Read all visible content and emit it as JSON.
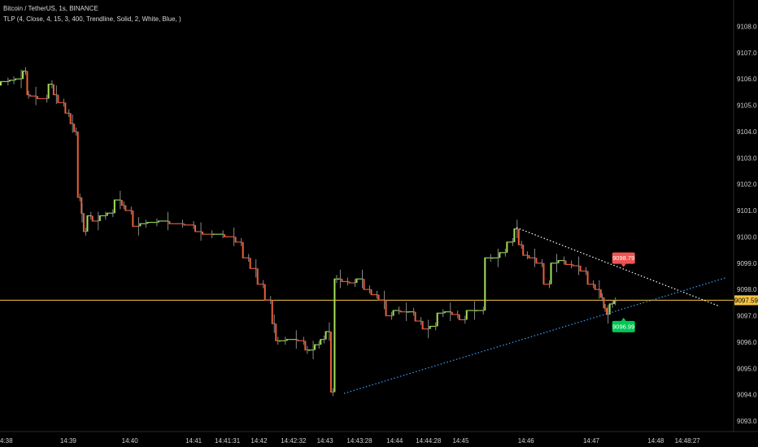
{
  "legend": {
    "symbol": "Bitcoin / TetherUS, 1s, BINANCE",
    "indicator": "TLP (4, Close, 4, 15, 3, 400, Trendline, Solid, 2, White, Blue, )"
  },
  "chart_data": {
    "type": "candlestick",
    "y_axis": {
      "side": "right",
      "ylim": [
        9092.6,
        9109.0
      ],
      "ticks": [
        9093.0,
        9094.0,
        9095.0,
        9096.0,
        9097.0,
        9098.0,
        9099.0,
        9100.0,
        9101.0,
        9102.0,
        9103.0,
        9104.0,
        9105.0,
        9106.0,
        9107.0,
        9108.0
      ]
    },
    "x_axis": {
      "ticks": [
        {
          "label": "4:38",
          "pos": 0.0
        },
        {
          "label": "14:39",
          "pos": 0.093
        },
        {
          "label": "14:40",
          "pos": 0.177
        },
        {
          "label": "14:41",
          "pos": 0.264
        },
        {
          "label": "14:41:31",
          "pos": 0.31
        },
        {
          "label": "14:42",
          "pos": 0.353
        },
        {
          "label": "14:42:32",
          "pos": 0.4
        },
        {
          "label": "14:43",
          "pos": 0.443
        },
        {
          "label": "14:43:28",
          "pos": 0.49
        },
        {
          "label": "14:44",
          "pos": 0.538
        },
        {
          "label": "14:44:28",
          "pos": 0.584
        },
        {
          "label": "14:45",
          "pos": 0.628
        },
        {
          "label": "14:46",
          "pos": 0.717
        },
        {
          "label": "14:47",
          "pos": 0.806
        },
        {
          "label": "14:48",
          "pos": 0.894
        },
        {
          "label": "14:48:27",
          "pos": 0.937
        }
      ]
    },
    "current_price": {
      "value": 9097.59,
      "label": "9097.59",
      "color": "#f5c542"
    },
    "trendlines": [
      {
        "name": "resistance",
        "color": "#ffffff",
        "style": "dotted",
        "from": {
          "pos": 0.704,
          "price": 9100.35
        },
        "to": {
          "pos": 0.98,
          "price": 9097.37
        }
      },
      {
        "name": "support",
        "color": "#3aa0ff",
        "style": "dotted",
        "from": {
          "pos": 0.469,
          "price": 9094.05
        },
        "to": {
          "pos": 0.99,
          "price": 9098.45
        }
      }
    ],
    "markers": [
      {
        "label": "9098.79",
        "price": 9098.79,
        "pos": 0.85,
        "color": "#f05350",
        "placement": "above"
      },
      {
        "label": "9096.99",
        "price": 9096.99,
        "pos": 0.85,
        "color": "#00c853",
        "placement": "below"
      }
    ],
    "price_path": [
      [
        0.0,
        9105.75
      ],
      [
        0.012,
        9105.9
      ],
      [
        0.02,
        9105.95
      ],
      [
        0.03,
        9106.0
      ],
      [
        0.036,
        9106.3
      ],
      [
        0.04,
        9105.4
      ],
      [
        0.05,
        9105.35
      ],
      [
        0.065,
        9105.25
      ],
      [
        0.072,
        9105.8
      ],
      [
        0.078,
        9105.4
      ],
      [
        0.088,
        9105.1
      ],
      [
        0.095,
        9104.7
      ],
      [
        0.1,
        9104.3
      ],
      [
        0.105,
        9104.0
      ],
      [
        0.11,
        9101.5
      ],
      [
        0.113,
        9100.9
      ],
      [
        0.118,
        9100.2
      ],
      [
        0.125,
        9100.8
      ],
      [
        0.135,
        9100.6
      ],
      [
        0.145,
        9100.8
      ],
      [
        0.155,
        9100.9
      ],
      [
        0.165,
        9101.4
      ],
      [
        0.17,
        9101.2
      ],
      [
        0.18,
        9101.0
      ],
      [
        0.19,
        9100.4
      ],
      [
        0.2,
        9100.5
      ],
      [
        0.215,
        9100.55
      ],
      [
        0.23,
        9100.6
      ],
      [
        0.25,
        9100.5
      ],
      [
        0.265,
        9100.45
      ],
      [
        0.275,
        9100.2
      ],
      [
        0.29,
        9100.1
      ],
      [
        0.305,
        9100.1
      ],
      [
        0.32,
        9100.0
      ],
      [
        0.33,
        9099.8
      ],
      [
        0.34,
        9099.2
      ],
      [
        0.35,
        9098.8
      ],
      [
        0.36,
        9098.2
      ],
      [
        0.37,
        9097.6
      ],
      [
        0.375,
        9096.7
      ],
      [
        0.38,
        9096.05
      ],
      [
        0.39,
        9096.05
      ],
      [
        0.405,
        9096.1
      ],
      [
        0.415,
        9096.05
      ],
      [
        0.42,
        9095.7
      ],
      [
        0.428,
        9095.7
      ],
      [
        0.436,
        9095.9
      ],
      [
        0.443,
        9096.1
      ],
      [
        0.45,
        9096.4
      ],
      [
        0.455,
        9094.1
      ],
      [
        0.46,
        9098.4
      ],
      [
        0.465,
        9098.4
      ],
      [
        0.475,
        9098.3
      ],
      [
        0.485,
        9098.25
      ],
      [
        0.495,
        9098.4
      ],
      [
        0.505,
        9098.0
      ],
      [
        0.515,
        9097.8
      ],
      [
        0.525,
        9097.6
      ],
      [
        0.535,
        9097.0
      ],
      [
        0.545,
        9097.2
      ],
      [
        0.555,
        9097.15
      ],
      [
        0.565,
        9097.15
      ],
      [
        0.575,
        9096.8
      ],
      [
        0.585,
        9096.5
      ],
      [
        0.595,
        9096.6
      ],
      [
        0.605,
        9097.1
      ],
      [
        0.615,
        9097.15
      ],
      [
        0.625,
        9097.05
      ],
      [
        0.635,
        9096.85
      ],
      [
        0.648,
        9097.2
      ],
      [
        0.66,
        9097.2
      ],
      [
        0.67,
        9099.2
      ],
      [
        0.68,
        9099.2
      ],
      [
        0.69,
        9099.4
      ],
      [
        0.7,
        9099.8
      ],
      [
        0.706,
        9100.3
      ],
      [
        0.712,
        9099.7
      ],
      [
        0.72,
        9099.3
      ],
      [
        0.73,
        9099.2
      ],
      [
        0.74,
        9099.0
      ],
      [
        0.75,
        9098.2
      ],
      [
        0.76,
        9099.0
      ],
      [
        0.77,
        9099.1
      ],
      [
        0.78,
        9098.95
      ],
      [
        0.79,
        9098.9
      ],
      [
        0.8,
        9098.7
      ],
      [
        0.81,
        9098.2
      ],
      [
        0.818,
        9098.0
      ],
      [
        0.822,
        9097.7
      ],
      [
        0.826,
        9097.3
      ],
      [
        0.83,
        9097.05
      ],
      [
        0.836,
        9097.45
      ],
      [
        0.84,
        9097.55
      ]
    ]
  }
}
